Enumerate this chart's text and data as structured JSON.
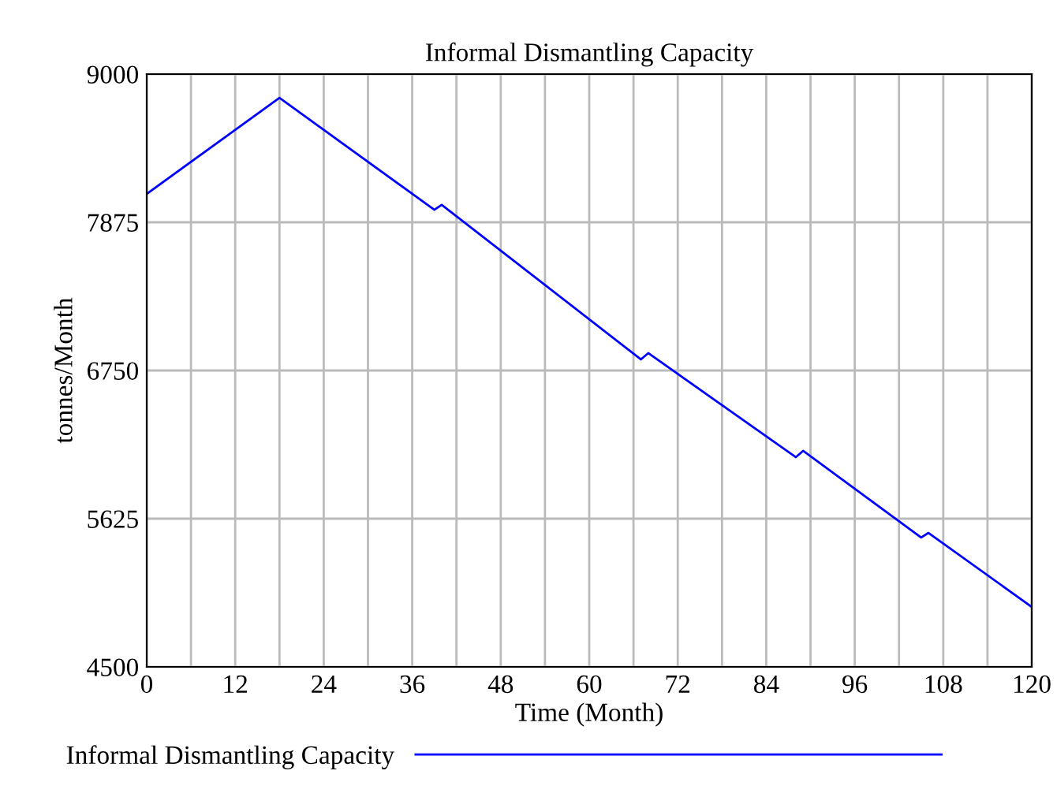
{
  "chart_data": {
    "type": "line",
    "title": "Informal Dismantling Capacity",
    "xlabel": "Time (Month)",
    "ylabel": "tonnes/Month",
    "series": [
      {
        "name": "Informal Dismantling Capacity",
        "color": "#0000ff",
        "x": [
          0,
          18,
          39,
          40,
          67,
          68,
          88,
          89,
          105,
          106,
          120
        ],
        "values": [
          8090,
          8820,
          7970,
          8007,
          6834,
          6882,
          6092,
          6140,
          5482,
          5517,
          4955
        ]
      }
    ],
    "xlim": [
      0,
      120
    ],
    "ylim": [
      4500,
      9000
    ],
    "xticks": [
      0,
      {
        "value": 6,
        "label": null
      },
      12,
      {
        "value": 18,
        "label": null
      },
      24,
      {
        "value": 30,
        "label": null
      },
      36,
      {
        "value": 42,
        "label": null
      },
      48,
      {
        "value": 54,
        "label": null
      },
      60,
      {
        "value": 66,
        "label": null
      },
      72,
      {
        "value": 78,
        "label": null
      },
      84,
      {
        "value": 90,
        "label": null
      },
      96,
      {
        "value": 102,
        "label": null
      },
      108,
      {
        "value": 114,
        "label": null
      },
      120
    ],
    "yticks": [
      4500,
      5625,
      6750,
      7875,
      9000
    ],
    "grid": true,
    "legend": "bottom",
    "line_style": "solid"
  }
}
